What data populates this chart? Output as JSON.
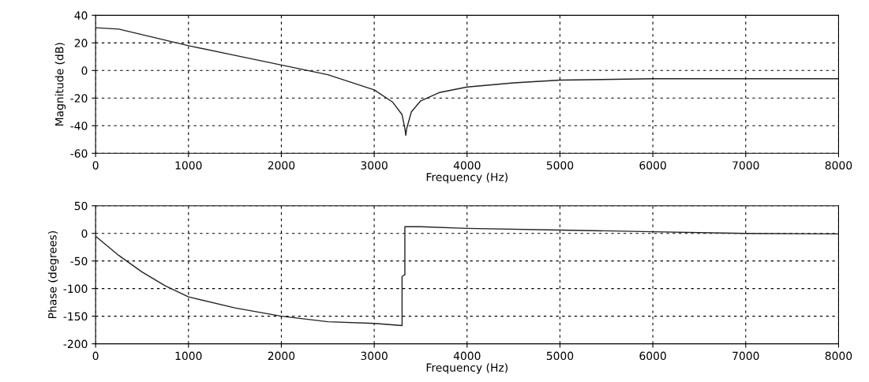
{
  "chart_data": [
    {
      "type": "line",
      "xlabel": "Frequency (Hz)",
      "ylabel": "Magnitude (dB)",
      "xlim": [
        0,
        8000
      ],
      "xticks": [
        0,
        1000,
        2000,
        3000,
        4000,
        5000,
        6000,
        7000,
        8000
      ],
      "ylim": [
        -60,
        40
      ],
      "yticks": [
        -60,
        -40,
        -20,
        0,
        20,
        40
      ],
      "grid": true,
      "line_style": "solid",
      "marker": "none",
      "series": [
        {
          "color": "#222222",
          "x": [
            0,
            250,
            500,
            1000,
            1500,
            2000,
            2500,
            3000,
            3200,
            3300,
            3330,
            3340,
            3350,
            3400,
            3500,
            3700,
            4000,
            4500,
            5000,
            6000,
            7000,
            8000
          ],
          "values": [
            31,
            30,
            26,
            18,
            11,
            4,
            -3,
            -14,
            -23,
            -32,
            -42,
            -47,
            -42,
            -30,
            -22,
            -16,
            -12,
            -9,
            -7,
            -6,
            -6,
            -6
          ]
        }
      ]
    },
    {
      "type": "line",
      "xlabel": "Frequency (Hz)",
      "ylabel": "Phase (degrees)",
      "xlim": [
        0,
        8000
      ],
      "xticks": [
        0,
        1000,
        2000,
        3000,
        4000,
        5000,
        6000,
        7000,
        8000
      ],
      "ylim": [
        -200,
        50
      ],
      "yticks": [
        -200,
        -150,
        -100,
        -50,
        0,
        50
      ],
      "grid": true,
      "line_style": "solid",
      "marker": "none",
      "series": [
        {
          "color": "#222222",
          "x": [
            0,
            250,
            500,
            750,
            1000,
            1500,
            2000,
            2500,
            3000,
            3300,
            3300,
            3330,
            3330,
            3500,
            4000,
            5000,
            6000,
            7000,
            8000
          ],
          "values": [
            -5,
            -40,
            -70,
            -95,
            -115,
            -135,
            -150,
            -160,
            -163,
            -167,
            -78,
            -75,
            12,
            12,
            9,
            6,
            3,
            0,
            -1
          ]
        }
      ]
    }
  ]
}
